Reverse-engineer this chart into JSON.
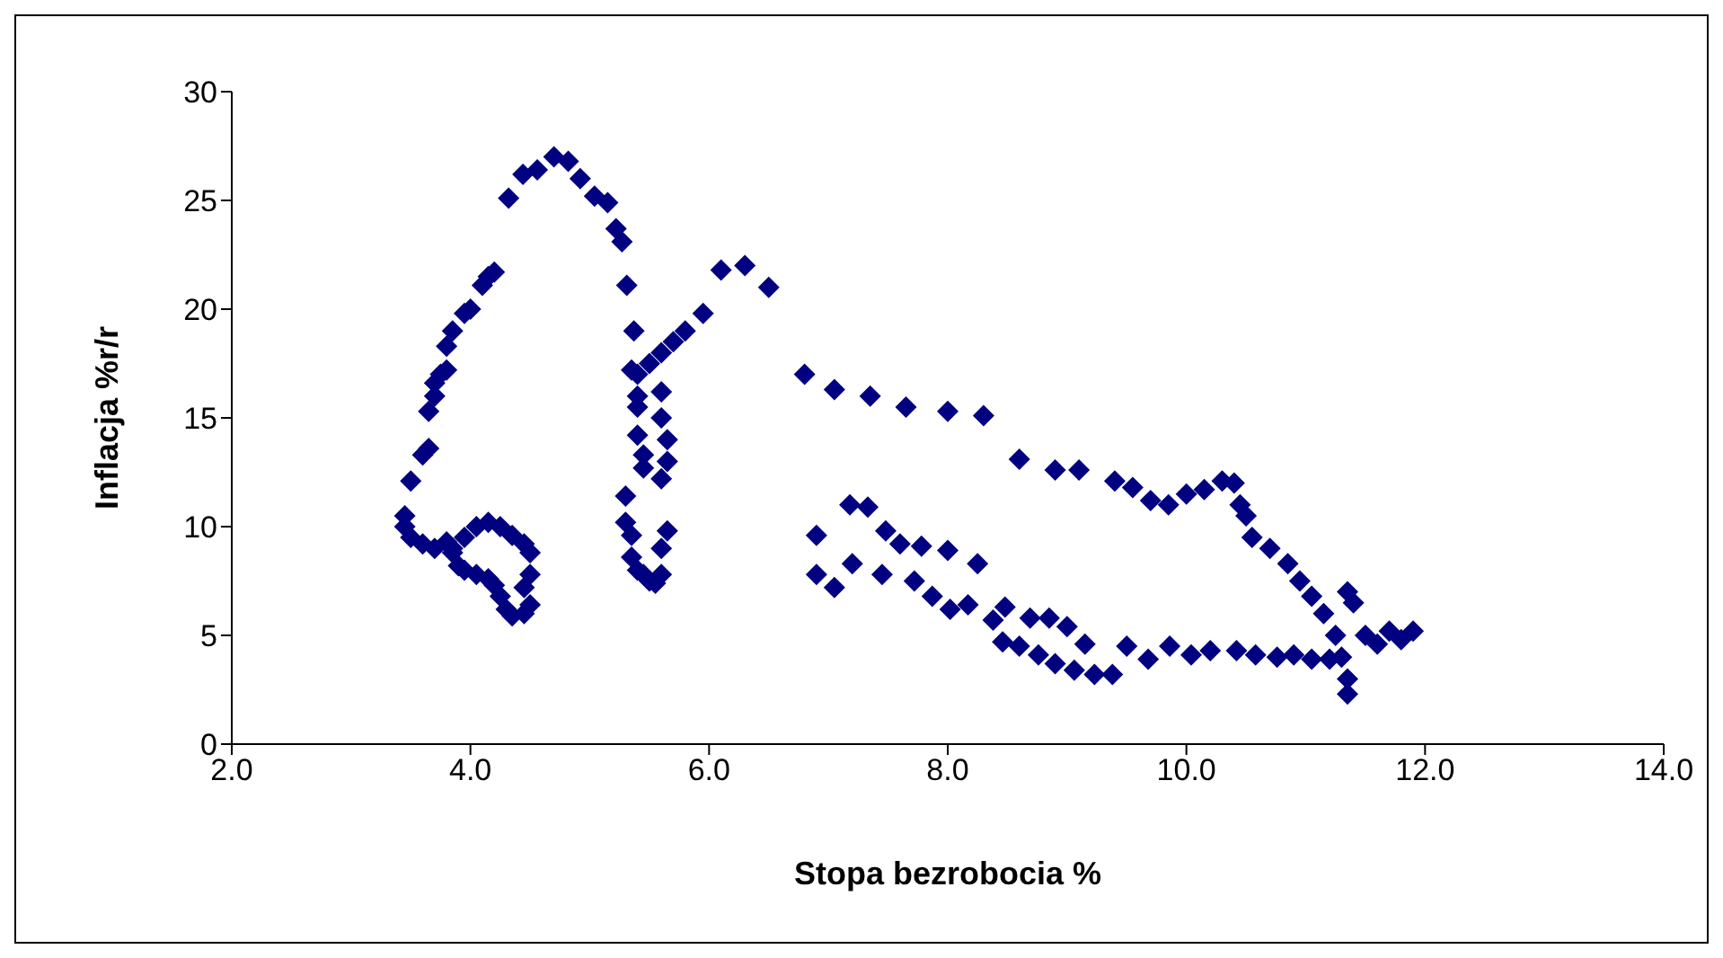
{
  "chart_data": {
    "type": "scatter",
    "xlabel": "Stopa bezrobocia %",
    "ylabel": "Inflacja %r/r",
    "marker": "diamond",
    "grid": false,
    "legend": false,
    "xlim": [
      2,
      14
    ],
    "xticks": [
      {
        "value": 2,
        "label": "2.0"
      },
      {
        "value": 4,
        "label": "4.0"
      },
      {
        "value": 6,
        "label": "6.0"
      },
      {
        "value": 8,
        "label": "8.0"
      },
      {
        "value": 10,
        "label": "10.0"
      },
      {
        "value": 12,
        "label": "12.0"
      },
      {
        "value": 14,
        "label": "14.0"
      }
    ],
    "ylim": [
      0,
      30
    ],
    "yticks": [
      0,
      5,
      10,
      15,
      20,
      25,
      30
    ],
    "series": [
      {
        "color": "#000080",
        "x": [
          3.45,
          3.45,
          3.5,
          3.6,
          3.7,
          3.8,
          3.85,
          3.9,
          3.95,
          4.05,
          4.15,
          4.2,
          4.25,
          4.3,
          4.35,
          4.45,
          4.5,
          4.45,
          4.5,
          4.5,
          4.45,
          4.35,
          4.25,
          4.15,
          4.05,
          3.95,
          3.85,
          3.5,
          3.6,
          3.65,
          3.65,
          3.7,
          3.7,
          3.75,
          3.8,
          3.8,
          3.85,
          3.95,
          4.0,
          4.1,
          4.15,
          4.2,
          4.32,
          4.44,
          4.56,
          4.7,
          4.82,
          4.92,
          5.04,
          5.15,
          5.22,
          5.27,
          5.31,
          5.37,
          5.35,
          5.4,
          5.3,
          5.3,
          5.35,
          5.35,
          5.4,
          5.45,
          5.5,
          5.55,
          5.6,
          5.6,
          5.65,
          5.6,
          5.65,
          5.65,
          5.6,
          5.6,
          5.4,
          5.4,
          5.45,
          5.45,
          5.4,
          5.5,
          5.6,
          5.7,
          5.8,
          5.95,
          6.1,
          6.3,
          6.5,
          6.8,
          7.05,
          7.35,
          7.65,
          8.0,
          8.3,
          8.6,
          8.9,
          9.1,
          9.4,
          9.55,
          9.7,
          9.85,
          10.0,
          10.15,
          10.3,
          10.4,
          10.45,
          10.5,
          10.55,
          10.7,
          10.85,
          10.95,
          11.05,
          11.15,
          11.25,
          11.3,
          11.35,
          11.35,
          11.4,
          11.35,
          11.5,
          11.6,
          11.7,
          11.8,
          11.9,
          6.9,
          7.18,
          7.33,
          7.48,
          7.6,
          7.78,
          8.0,
          8.25,
          6.9,
          7.05,
          7.2,
          7.45,
          7.72,
          7.87,
          8.02,
          8.17,
          8.38,
          8.48,
          8.69,
          8.85,
          9.0,
          9.15,
          8.46,
          8.6,
          8.76,
          8.9,
          9.06,
          9.23,
          9.38,
          9.5,
          9.68,
          9.86,
          10.04,
          10.2,
          10.42,
          10.58,
          10.76,
          10.9,
          11.05,
          11.2
        ],
        "values": [
          10.5,
          10.0,
          9.5,
          9.2,
          9.0,
          9.3,
          8.8,
          8.2,
          8.0,
          7.8,
          7.6,
          7.3,
          6.8,
          6.2,
          5.9,
          6.0,
          6.4,
          7.2,
          7.8,
          8.8,
          9.2,
          9.6,
          10.0,
          10.2,
          10.0,
          9.5,
          9.0,
          12.1,
          13.3,
          13.6,
          15.3,
          16.0,
          16.6,
          17.0,
          17.2,
          18.3,
          19.0,
          19.8,
          20.0,
          21.1,
          21.5,
          21.7,
          25.1,
          26.2,
          26.4,
          27.0,
          26.8,
          26.0,
          25.2,
          24.9,
          23.7,
          23.1,
          21.1,
          19.0,
          17.2,
          16.0,
          11.4,
          10.2,
          9.6,
          8.6,
          8.0,
          7.8,
          7.5,
          7.4,
          7.8,
          9.0,
          9.8,
          12.2,
          13.0,
          14.0,
          15.0,
          16.2,
          15.5,
          14.2,
          13.3,
          12.7,
          17.0,
          17.5,
          18.0,
          18.5,
          19.0,
          19.8,
          21.8,
          22.0,
          21.0,
          17.0,
          16.3,
          16.0,
          15.5,
          15.3,
          15.1,
          13.1,
          12.6,
          12.6,
          12.1,
          11.8,
          11.2,
          11.0,
          11.5,
          11.7,
          12.1,
          12.0,
          11.0,
          10.5,
          9.5,
          9.0,
          8.3,
          7.5,
          6.8,
          6.0,
          5.0,
          4.0,
          3.0,
          2.3,
          6.5,
          7.0,
          5.0,
          4.6,
          5.2,
          4.8,
          5.2,
          9.6,
          11.0,
          10.9,
          9.8,
          9.2,
          9.1,
          8.9,
          8.3,
          7.8,
          7.2,
          8.3,
          7.8,
          7.5,
          6.8,
          6.2,
          6.4,
          5.7,
          6.3,
          5.8,
          5.8,
          5.4,
          4.6,
          4.7,
          4.5,
          4.1,
          3.7,
          3.4,
          3.2,
          3.2,
          4.5,
          3.9,
          4.5,
          4.1,
          4.3,
          4.3,
          4.1,
          4.0,
          4.1,
          3.9,
          3.9
        ]
      }
    ]
  }
}
